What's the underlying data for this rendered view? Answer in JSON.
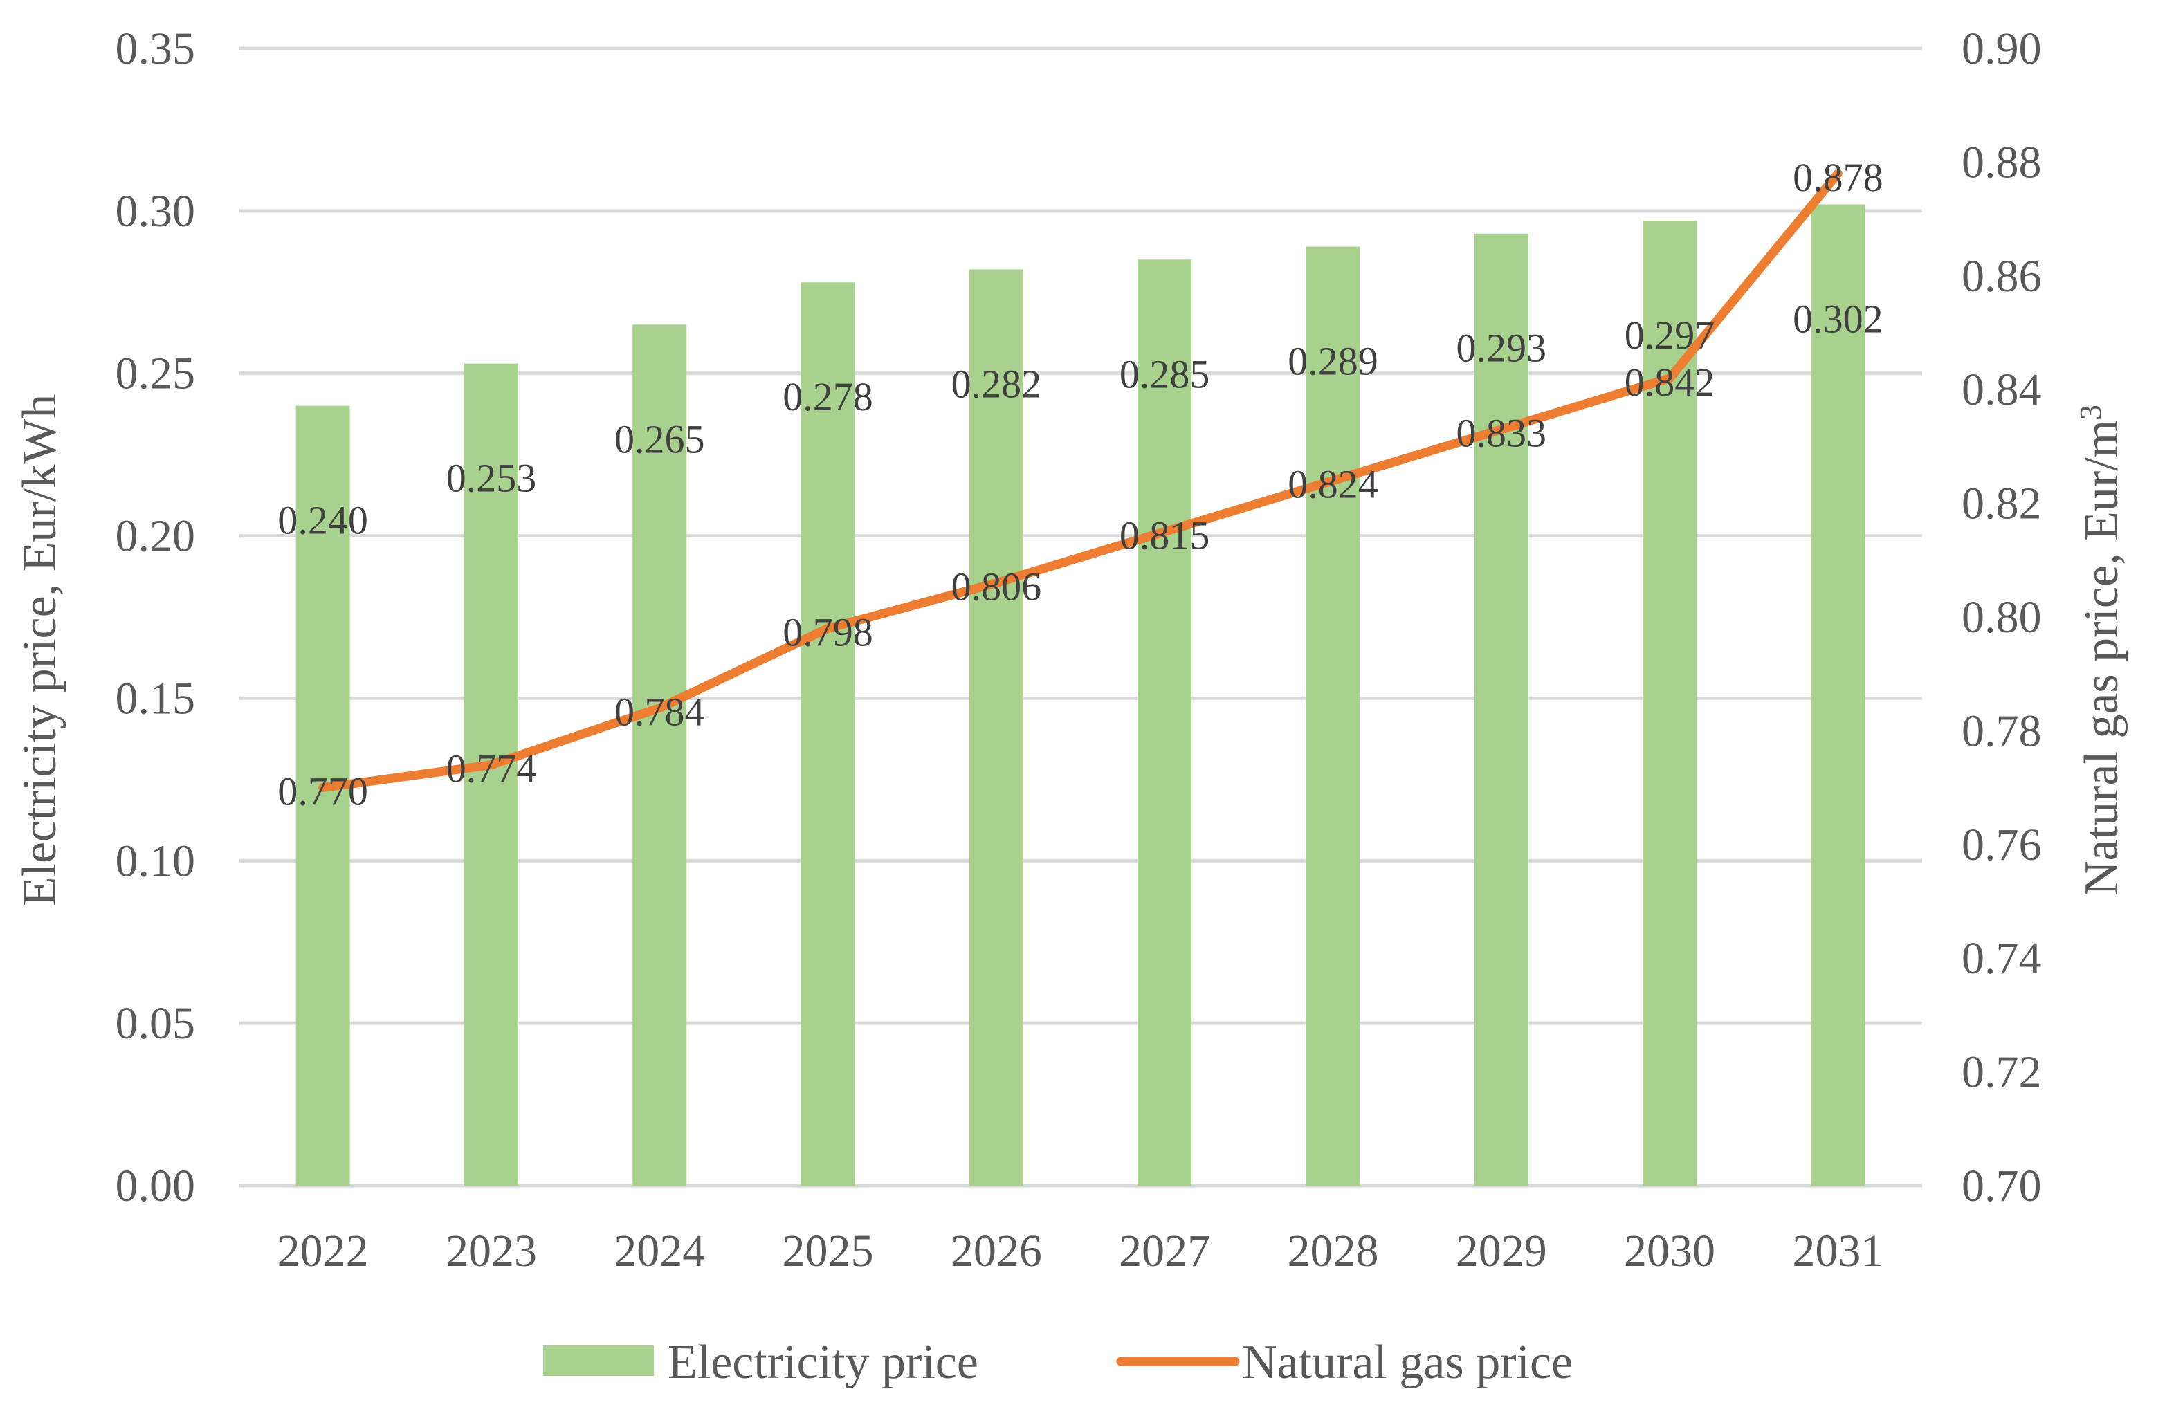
{
  "chart_data": {
    "type": "bar",
    "title": "",
    "categories": [
      "2022",
      "2023",
      "2024",
      "2025",
      "2026",
      "2027",
      "2028",
      "2029",
      "2030",
      "2031"
    ],
    "series": [
      {
        "name": "Electricity price",
        "type": "bar",
        "axis": "left",
        "color": "#a9d18e",
        "values": [
          0.24,
          0.253,
          0.265,
          0.278,
          0.282,
          0.285,
          0.289,
          0.293,
          0.297,
          0.302
        ],
        "labels": [
          "0.240",
          "0.253",
          "0.265",
          "0.278",
          "0.282",
          "0.285",
          "0.289",
          "0.293",
          "0.297",
          "0.302"
        ]
      },
      {
        "name": "Natural gas price",
        "type": "line",
        "axis": "right",
        "color": "#ed7d31",
        "values": [
          0.77,
          0.774,
          0.784,
          0.798,
          0.806,
          0.815,
          0.824,
          0.833,
          0.842,
          0.878
        ],
        "labels": [
          "0.770",
          "0.774",
          "0.784",
          "0.798",
          "0.806",
          "0.815",
          "0.824",
          "0.833",
          "0.842",
          "0.878"
        ]
      }
    ],
    "y_left": {
      "label": "Electricity price, Eur/kWh",
      "lim": [
        0,
        0.35
      ],
      "ticks": [
        0.0,
        0.05,
        0.1,
        0.15,
        0.2,
        0.25,
        0.3,
        0.35
      ],
      "tick_labels": [
        "0.00",
        "0.05",
        "0.10",
        "0.15",
        "0.20",
        "0.25",
        "0.30",
        "0.35"
      ]
    },
    "y_right": {
      "label": "Natural gas price, Eur/m",
      "label_superscript": "3",
      "lim": [
        0.7,
        0.9
      ],
      "ticks": [
        0.7,
        0.72,
        0.74,
        0.76,
        0.78,
        0.8,
        0.82,
        0.84,
        0.86,
        0.88,
        0.9
      ],
      "tick_labels": [
        "0.70",
        "0.72",
        "0.74",
        "0.76",
        "0.78",
        "0.80",
        "0.82",
        "0.84",
        "0.86",
        "0.88",
        "0.90"
      ]
    },
    "xlabel": "",
    "grid": true,
    "gridline_color": "#d9d9d9",
    "legend": {
      "position": "bottom",
      "items": [
        "Electricity price",
        "Natural gas price"
      ]
    }
  }
}
